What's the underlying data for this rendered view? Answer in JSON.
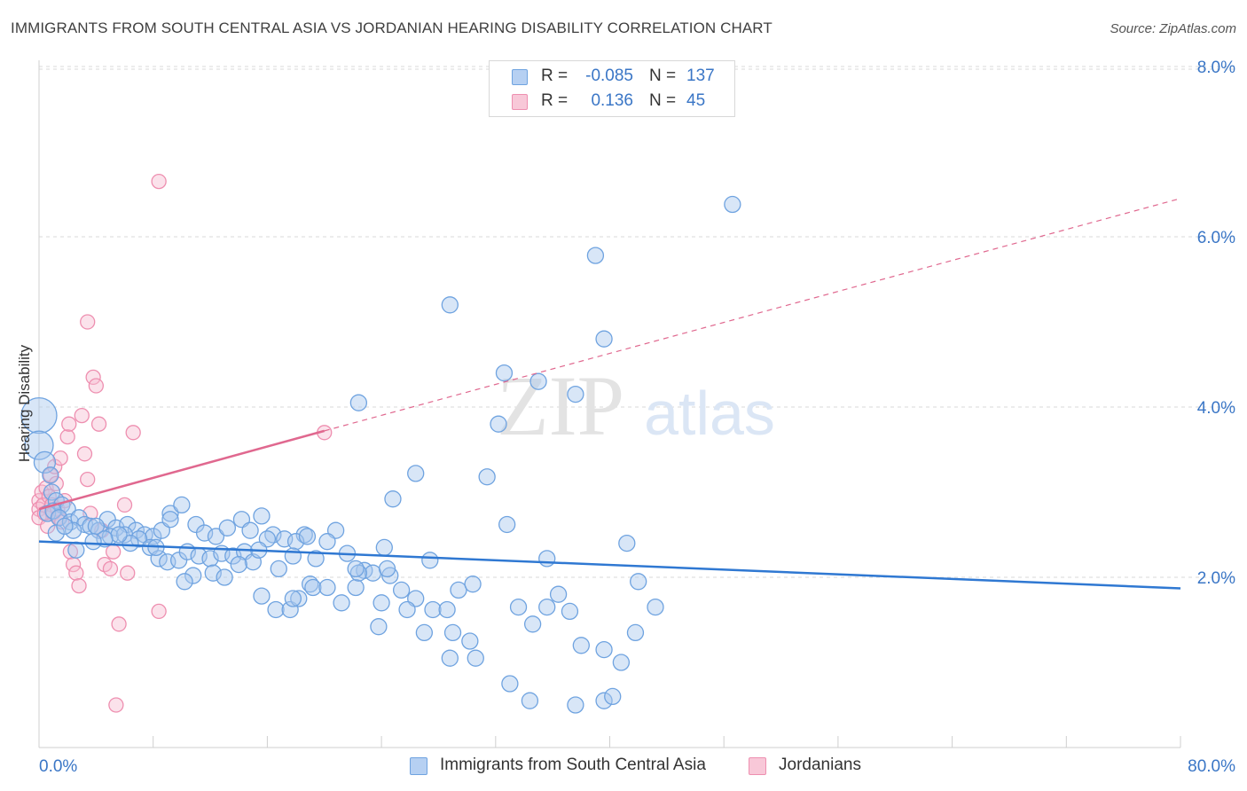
{
  "title": "IMMIGRANTS FROM SOUTH CENTRAL ASIA VS JORDANIAN HEARING DISABILITY CORRELATION CHART",
  "source": "Source: ZipAtlas.com",
  "watermark": {
    "zip": "ZIP",
    "atlas": "atlas"
  },
  "legend": {
    "rows": [
      {
        "r_label": "R =",
        "r_value": "-0.085",
        "n_label": "N =",
        "n_value": "137"
      },
      {
        "r_label": "R =",
        "r_value": "0.136",
        "n_label": "N =",
        "n_value": "45"
      }
    ]
  },
  "colors": {
    "blue": "#6fa3e0",
    "blue_fill": "#a9c8ee",
    "blue_line": "#2f78d2",
    "pink": "#ee8fb0",
    "pink_fill": "#f6bfd2",
    "pink_line": "#e0688f",
    "tick_label": "#3a76c6",
    "grid": "#d9d9d9"
  },
  "chart_data": {
    "type": "scatter",
    "title": "IMMIGRANTS FROM SOUTH CENTRAL ASIA VS JORDANIAN HEARING DISABILITY CORRELATION CHART",
    "xlabel": "",
    "ylabel": "Hearing Disability",
    "xlim": [
      0,
      80
    ],
    "ylim": [
      0,
      8
    ],
    "x_tick_labels": [
      "0.0%",
      "80.0%"
    ],
    "y_ticks": [
      2,
      4,
      6,
      8
    ],
    "y_tick_labels": [
      "2.0%",
      "4.0%",
      "6.0%",
      "8.0%"
    ],
    "grid": "horizontal dashed",
    "legend_position": "bottom",
    "series": [
      {
        "name": "Immigrants from South Central Asia",
        "color": "#6fa3e0",
        "stats": {
          "R": -0.085,
          "N": 137
        },
        "trend": {
          "x": [
            0,
            80
          ],
          "y": [
            2.42,
            1.87
          ],
          "style": "solid"
        },
        "points": [
          [
            0,
            3.9
          ],
          [
            0,
            3.55
          ],
          [
            0.4,
            3.35
          ],
          [
            0.8,
            3.2
          ],
          [
            0.9,
            3.0
          ],
          [
            1.2,
            2.9
          ],
          [
            1.6,
            2.85
          ],
          [
            2.0,
            2.8
          ],
          [
            0.6,
            2.75
          ],
          [
            1.0,
            2.78
          ],
          [
            1.4,
            2.7
          ],
          [
            2.2,
            2.65
          ],
          [
            2.8,
            2.7
          ],
          [
            3.2,
            2.62
          ],
          [
            3.6,
            2.6
          ],
          [
            4.2,
            2.55
          ],
          [
            4.8,
            2.68
          ],
          [
            5.4,
            2.58
          ],
          [
            6.2,
            2.62
          ],
          [
            6.8,
            2.55
          ],
          [
            7.4,
            2.5
          ],
          [
            8.0,
            2.48
          ],
          [
            8.6,
            2.55
          ],
          [
            9.2,
            2.75
          ],
          [
            10.0,
            2.85
          ],
          [
            11.0,
            2.62
          ],
          [
            11.6,
            2.52
          ],
          [
            12.4,
            2.48
          ],
          [
            13.2,
            2.58
          ],
          [
            14.2,
            2.68
          ],
          [
            14.8,
            2.55
          ],
          [
            15.6,
            2.72
          ],
          [
            16.4,
            2.5
          ],
          [
            17.2,
            2.45
          ],
          [
            18.6,
            2.5
          ],
          [
            2.4,
            2.55
          ],
          [
            4.0,
            2.6
          ],
          [
            5.0,
            2.48
          ],
          [
            6.0,
            2.5
          ],
          [
            7.0,
            2.45
          ],
          [
            7.8,
            2.35
          ],
          [
            8.4,
            2.22
          ],
          [
            9.0,
            2.18
          ],
          [
            9.8,
            2.2
          ],
          [
            10.4,
            2.3
          ],
          [
            11.2,
            2.25
          ],
          [
            12.0,
            2.22
          ],
          [
            12.8,
            2.28
          ],
          [
            13.6,
            2.25
          ],
          [
            14.4,
            2.3
          ],
          [
            15.0,
            2.18
          ],
          [
            10.8,
            2.02
          ],
          [
            12.2,
            2.05
          ],
          [
            13.0,
            2.0
          ],
          [
            14.0,
            2.15
          ],
          [
            10.2,
            1.95
          ],
          [
            15.6,
            1.78
          ],
          [
            16.6,
            1.62
          ],
          [
            17.6,
            1.62
          ],
          [
            18.2,
            1.75
          ],
          [
            17.8,
            1.75
          ],
          [
            19.0,
            1.92
          ],
          [
            19.2,
            1.88
          ],
          [
            20.2,
            1.88
          ],
          [
            21.2,
            1.7
          ],
          [
            22.2,
            1.88
          ],
          [
            22.8,
            2.08
          ],
          [
            23.4,
            2.05
          ],
          [
            24.6,
            2.02
          ],
          [
            21.6,
            2.28
          ],
          [
            18.0,
            2.42
          ],
          [
            17.8,
            2.25
          ],
          [
            16.0,
            2.45
          ],
          [
            19.4,
            2.22
          ],
          [
            22.4,
            2.05
          ],
          [
            25.4,
            1.85
          ],
          [
            26.4,
            1.75
          ],
          [
            27.6,
            1.62
          ],
          [
            24.0,
            1.7
          ],
          [
            23.8,
            1.42
          ],
          [
            25.8,
            1.62
          ],
          [
            28.6,
            1.62
          ],
          [
            29.4,
            1.85
          ],
          [
            30.4,
            1.92
          ],
          [
            29.0,
            1.35
          ],
          [
            27.0,
            1.35
          ],
          [
            30.2,
            1.25
          ],
          [
            32.8,
            2.62
          ],
          [
            32.2,
            3.8
          ],
          [
            31.4,
            3.18
          ],
          [
            32.6,
            4.4
          ],
          [
            26.4,
            3.22
          ],
          [
            24.8,
            2.92
          ],
          [
            24.2,
            2.35
          ],
          [
            22.4,
            4.05
          ],
          [
            20.8,
            2.55
          ],
          [
            20.2,
            2.42
          ],
          [
            18.8,
            2.48
          ],
          [
            22.2,
            2.1
          ],
          [
            24.4,
            2.1
          ],
          [
            27.4,
            2.2
          ],
          [
            28.8,
            1.05
          ],
          [
            30.6,
            1.05
          ],
          [
            33.6,
            1.65
          ],
          [
            34.6,
            1.45
          ],
          [
            35.6,
            1.65
          ],
          [
            36.4,
            1.8
          ],
          [
            37.6,
            4.15
          ],
          [
            38.0,
            1.2
          ],
          [
            39.6,
            1.15
          ],
          [
            39.6,
            0.55
          ],
          [
            40.2,
            0.6
          ],
          [
            41.8,
            1.35
          ],
          [
            41.2,
            2.4
          ],
          [
            42.0,
            1.95
          ],
          [
            35.6,
            2.22
          ],
          [
            33.0,
            0.75
          ],
          [
            37.6,
            0.5
          ],
          [
            34.4,
            0.55
          ],
          [
            40.8,
            1.0
          ],
          [
            43.2,
            1.65
          ],
          [
            37.2,
            1.6
          ],
          [
            39.6,
            4.8
          ],
          [
            28.8,
            5.2
          ],
          [
            35.0,
            4.3
          ],
          [
            39.0,
            5.78
          ],
          [
            48.6,
            6.38
          ],
          [
            9.2,
            2.68
          ],
          [
            8.2,
            2.35
          ],
          [
            6.4,
            2.4
          ],
          [
            5.6,
            2.5
          ],
          [
            4.6,
            2.45
          ],
          [
            3.8,
            2.42
          ],
          [
            1.2,
            2.52
          ],
          [
            2.6,
            2.32
          ],
          [
            1.8,
            2.6
          ],
          [
            15.4,
            2.32
          ],
          [
            16.8,
            2.1
          ]
        ]
      },
      {
        "name": "Jordanians",
        "color": "#ee8fb0",
        "stats": {
          "R": 0.136,
          "N": 45
        },
        "trend_solid": {
          "x": [
            0,
            20
          ],
          "y": [
            2.8,
            3.72
          ]
        },
        "trend_dashed": {
          "x": [
            20,
            80
          ],
          "y": [
            3.72,
            6.45
          ]
        },
        "points": [
          [
            0,
            2.9
          ],
          [
            0,
            2.8
          ],
          [
            0,
            2.7
          ],
          [
            0.2,
            3.0
          ],
          [
            0.3,
            2.85
          ],
          [
            0.4,
            2.75
          ],
          [
            0.5,
            3.05
          ],
          [
            0.6,
            2.6
          ],
          [
            0.7,
            2.95
          ],
          [
            0.8,
            3.2
          ],
          [
            0.9,
            2.85
          ],
          [
            1.0,
            2.75
          ],
          [
            1.1,
            3.3
          ],
          [
            1.2,
            3.1
          ],
          [
            1.3,
            2.8
          ],
          [
            1.4,
            2.7
          ],
          [
            1.5,
            3.4
          ],
          [
            1.6,
            2.65
          ],
          [
            1.8,
            2.9
          ],
          [
            2.0,
            3.65
          ],
          [
            2.1,
            3.8
          ],
          [
            2.2,
            2.3
          ],
          [
            2.4,
            2.15
          ],
          [
            2.6,
            2.05
          ],
          [
            2.8,
            1.9
          ],
          [
            3.0,
            3.9
          ],
          [
            3.2,
            3.45
          ],
          [
            3.4,
            3.15
          ],
          [
            3.6,
            2.75
          ],
          [
            3.8,
            4.35
          ],
          [
            4.0,
            4.25
          ],
          [
            4.2,
            3.8
          ],
          [
            4.4,
            2.55
          ],
          [
            4.6,
            2.15
          ],
          [
            5.0,
            2.1
          ],
          [
            5.2,
            2.3
          ],
          [
            5.6,
            1.45
          ],
          [
            5.4,
            0.5
          ],
          [
            6.0,
            2.85
          ],
          [
            6.2,
            2.05
          ],
          [
            6.6,
            3.7
          ],
          [
            8.4,
            6.65
          ],
          [
            8.4,
            1.6
          ],
          [
            20.0,
            3.7
          ],
          [
            3.4,
            5.0
          ]
        ]
      }
    ]
  }
}
